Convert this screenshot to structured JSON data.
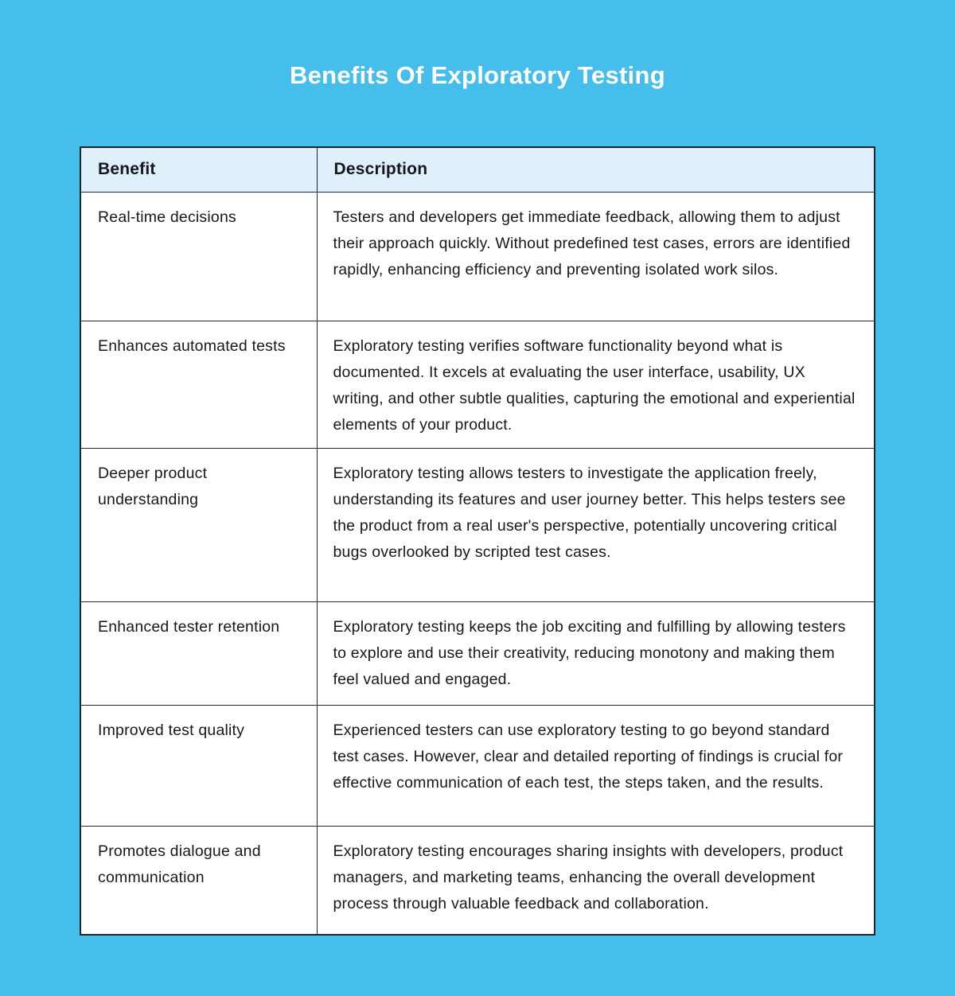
{
  "page": {
    "background_color": "#46BEEC",
    "title": "Benefits Of Exploratory Testing",
    "title_color": "#FFFFFF"
  },
  "table": {
    "colors": {
      "header_background": "#DFF0FA",
      "cell_background": "#FFFFFF",
      "border": "#1C2530",
      "text": "#16181D"
    },
    "headers": [
      "Benefit",
      "Description"
    ],
    "rows": [
      {
        "benefit": "Real-time decisions",
        "description": "Testers and developers get immediate feedback, allowing them to adjust their approach quickly. Without predefined test cases, errors are identified rapidly, enhancing efficiency and preventing isolated work silos."
      },
      {
        "benefit": "Enhances automated tests",
        "description": "Exploratory testing verifies software functionality beyond what is documented. It excels at evaluating the user interface, usability, UX writing, and other subtle qualities, capturing the emotional and experiential elements of your product."
      },
      {
        "benefit": "Deeper product understanding",
        "description": "Exploratory testing allows testers to investigate the application freely, understanding its features and user journey better. This helps testers see the product from a real user's perspective, potentially uncovering critical bugs overlooked by scripted test cases."
      },
      {
        "benefit": "Enhanced tester retention",
        "description": "Exploratory testing keeps the job exciting and fulfilling by allowing testers to explore and use their creativity, reducing monotony and making them feel valued and engaged."
      },
      {
        "benefit": "Improved test quality",
        "description": "Experienced testers can use exploratory testing to go beyond standard test cases. However, clear and detailed reporting of findings is crucial for effective communication of each test, the steps taken, and the results."
      },
      {
        "benefit": "Promotes dialogue and communication",
        "description": "Exploratory testing encourages sharing insights with developers, product managers, and marketing teams, enhancing the overall development process through valuable feedback and collaboration."
      }
    ]
  }
}
